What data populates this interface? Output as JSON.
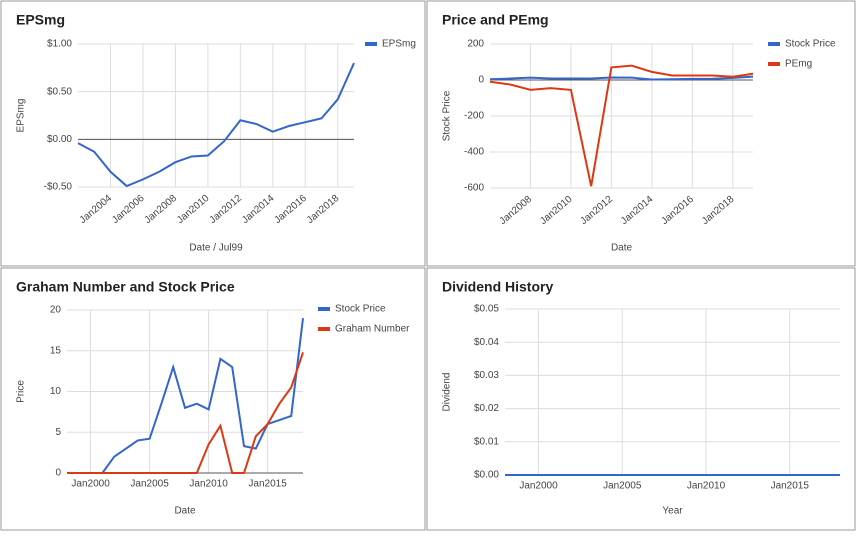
{
  "chart_data": [
    {
      "type": "line",
      "title": "EPSmg",
      "x_label": "Date / Jul99",
      "y_label": "EPSmg",
      "x": [
        2002,
        2003,
        2004,
        2005,
        2006,
        2007,
        2008,
        2009,
        2010,
        2011,
        2012,
        2013,
        2014,
        2015,
        2016,
        2017,
        2018,
        2019
      ],
      "series": [
        {
          "name": "EPSmg",
          "color": "#3366cc",
          "values": [
            -0.04,
            -0.13,
            -0.34,
            -0.49,
            -0.42,
            -0.34,
            -0.24,
            -0.18,
            -0.17,
            -0.02,
            0.2,
            0.16,
            0.08,
            0.14,
            0.18,
            0.22,
            0.42,
            0.8
          ]
        }
      ],
      "xlim": [
        2002,
        2019
      ],
      "xticks": [
        {
          "value": 2004,
          "label": "Jan2004"
        },
        {
          "value": 2006,
          "label": "Jan2006"
        },
        {
          "value": 2008,
          "label": "Jan2008"
        },
        {
          "value": 2010,
          "label": "Jan2010"
        },
        {
          "value": 2012,
          "label": "Jan2012"
        },
        {
          "value": 2014,
          "label": "Jan2014"
        },
        {
          "value": 2016,
          "label": "Jan2016"
        },
        {
          "value": 2018,
          "label": "Jan2018"
        }
      ],
      "ylim": [
        -0.5,
        1.0
      ],
      "yticks": [
        {
          "value": 1.0,
          "label": "$1.00"
        },
        {
          "value": 0.5,
          "label": "$0.50"
        },
        {
          "value": 0.0,
          "label": "$0.00"
        },
        {
          "value": -0.5,
          "label": "-$0.50"
        }
      ],
      "grid": true,
      "rotate_x_labels": true,
      "legend": "right"
    },
    {
      "type": "line",
      "title": "Price and PEmg",
      "x_label": "Date",
      "y_label": "Stock Price",
      "x": [
        2006,
        2007,
        2008,
        2009,
        2010,
        2011,
        2012,
        2013,
        2014,
        2015,
        2016,
        2017,
        2018,
        2019
      ],
      "series": [
        {
          "name": "Stock Price",
          "color": "#3366cc",
          "values": [
            4,
            8,
            13,
            8,
            8,
            8,
            14,
            13,
            3,
            4,
            6,
            7,
            12,
            19
          ]
        },
        {
          "name": "PEmg",
          "color": "#dc3912",
          "values": [
            -10,
            -25,
            -55,
            -45,
            -55,
            -590,
            70,
            80,
            45,
            25,
            25,
            25,
            18,
            35
          ]
        }
      ],
      "xlim": [
        2006,
        2019
      ],
      "xticks": [
        {
          "value": 2008,
          "label": "Jan2008"
        },
        {
          "value": 2010,
          "label": "Jan2010"
        },
        {
          "value": 2012,
          "label": "Jan2012"
        },
        {
          "value": 2014,
          "label": "Jan2014"
        },
        {
          "value": 2016,
          "label": "Jan2016"
        },
        {
          "value": 2018,
          "label": "Jan2018"
        }
      ],
      "ylim": [
        -600,
        200
      ],
      "yticks": [
        200,
        0,
        -200,
        -400,
        -600
      ],
      "grid": true,
      "rotate_x_labels": true,
      "legend": "right"
    },
    {
      "type": "line",
      "title": "Graham Number and Stock Price",
      "x_label": "Date",
      "y_label": "Price",
      "x": [
        1998,
        1999,
        2000,
        2001,
        2002,
        2003,
        2004,
        2005,
        2006,
        2007,
        2008,
        2009,
        2010,
        2011,
        2012,
        2013,
        2014,
        2015,
        2016,
        2017,
        2018
      ],
      "series": [
        {
          "name": "Stock Price",
          "color": "#3366cc",
          "values": [
            0,
            0,
            0,
            0,
            2,
            3,
            4,
            4.2,
            8.5,
            13,
            8,
            8.5,
            7.8,
            14,
            13,
            3.3,
            3,
            6,
            6.5,
            7,
            19
          ]
        },
        {
          "name": "Graham Number",
          "color": "#dc3912",
          "values": [
            0,
            0,
            0,
            0,
            0,
            0,
            0,
            0,
            0,
            0,
            0,
            0,
            3.5,
            5.8,
            0,
            0,
            4.5,
            6,
            8.5,
            10.5,
            14.8
          ]
        }
      ],
      "xlim": [
        1998,
        2018
      ],
      "xticks": [
        {
          "value": 2000,
          "label": "Jan2000"
        },
        {
          "value": 2005,
          "label": "Jan2005"
        },
        {
          "value": 2010,
          "label": "Jan2010"
        },
        {
          "value": 2015,
          "label": "Jan2015"
        }
      ],
      "ylim": [
        0,
        20
      ],
      "yticks": [
        0,
        5,
        10,
        15,
        20
      ],
      "grid": true,
      "rotate_x_labels": false,
      "legend": "right"
    },
    {
      "type": "line",
      "title": "Dividend History",
      "x_label": "Year",
      "y_label": "Dividend",
      "x": [
        1998,
        2018
      ],
      "series": [
        {
          "color": "#3366cc",
          "values": [
            0,
            0
          ]
        }
      ],
      "xlim": [
        1998,
        2018
      ],
      "xticks": [
        {
          "value": 2000,
          "label": "Jan2000"
        },
        {
          "value": 2005,
          "label": "Jan2005"
        },
        {
          "value": 2010,
          "label": "Jan2010"
        },
        {
          "value": 2015,
          "label": "Jan2015"
        }
      ],
      "ylim": [
        0,
        0.05
      ],
      "yticks": [
        {
          "value": 0.0,
          "label": "$0.00"
        },
        {
          "value": 0.01,
          "label": "$0.01"
        },
        {
          "value": 0.02,
          "label": "$0.02"
        },
        {
          "value": 0.03,
          "label": "$0.03"
        },
        {
          "value": 0.04,
          "label": "$0.04"
        },
        {
          "value": 0.05,
          "label": "$0.05"
        }
      ],
      "grid": true,
      "rotate_x_labels": false
    }
  ]
}
